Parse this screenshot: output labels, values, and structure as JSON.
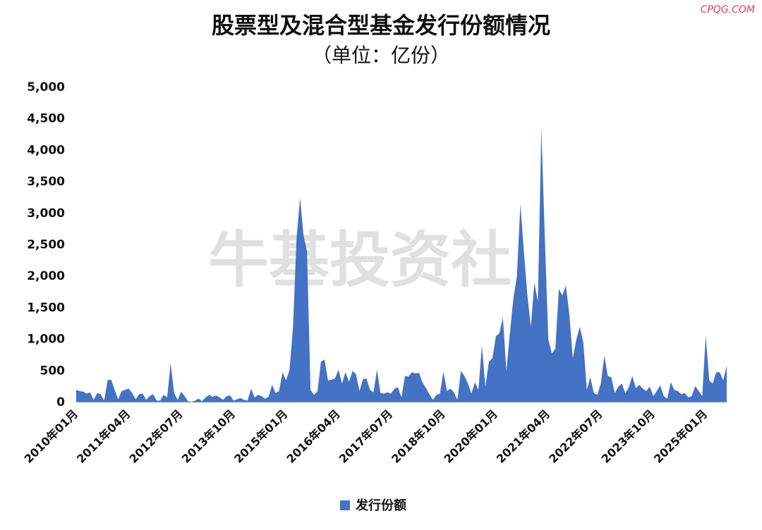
{
  "chart_data": {
    "type": "area",
    "title": "股票型及混合型基金发行份额情况",
    "subtitle": "（单位：亿份）",
    "watermark": "牛基投资社",
    "source": "CPQG.COM",
    "categories": [
      "2010年01月",
      null,
      null,
      null,
      null,
      null,
      null,
      null,
      null,
      null,
      null,
      null,
      null,
      null,
      null,
      "2011年04月",
      null,
      null,
      null,
      null,
      null,
      null,
      null,
      null,
      null,
      null,
      null,
      null,
      null,
      null,
      "2012年07月",
      null,
      null,
      null,
      null,
      null,
      null,
      null,
      null,
      null,
      null,
      null,
      null,
      null,
      null,
      "2013年10月",
      null,
      null,
      null,
      null,
      null,
      null,
      null,
      null,
      null,
      null,
      null,
      null,
      null,
      null,
      "2015年01月",
      null,
      null,
      null,
      null,
      null,
      null,
      null,
      null,
      null,
      null,
      null,
      null,
      null,
      null,
      "2016年04月",
      null,
      null,
      null,
      null,
      null,
      null,
      null,
      null,
      null,
      null,
      null,
      null,
      null,
      null,
      "2017年07月",
      null,
      null,
      null,
      null,
      null,
      null,
      null,
      null,
      null,
      null,
      null,
      null,
      null,
      null,
      "2018年10月",
      null,
      null,
      null,
      null,
      null,
      null,
      null,
      null,
      null,
      null,
      null,
      null,
      null,
      null,
      "2020年01月",
      null,
      null,
      null,
      null,
      null,
      null,
      null,
      null,
      null,
      null,
      null,
      null,
      null,
      null,
      "2021年04月",
      null,
      null,
      null,
      null,
      null,
      null,
      null,
      null,
      null,
      null,
      null,
      null,
      null,
      null,
      "2022年07月",
      null,
      null,
      null,
      null,
      null,
      null,
      null,
      null,
      null,
      null,
      null,
      null,
      null,
      null,
      "2023年10月",
      null,
      null,
      null,
      null,
      null,
      null,
      null,
      null,
      null,
      null,
      null,
      null,
      null,
      null,
      "2025年01月",
      null,
      null,
      null,
      null,
      null,
      null
    ],
    "series": [
      {
        "name": "发行份额",
        "color": "#4472c4",
        "values": [
          200,
          180,
          170,
          140,
          160,
          40,
          150,
          130,
          30,
          360,
          360,
          200,
          50,
          180,
          200,
          220,
          150,
          50,
          130,
          140,
          40,
          100,
          130,
          30,
          30,
          120,
          80,
          620,
          150,
          40,
          170,
          100,
          20,
          10,
          30,
          60,
          20,
          80,
          120,
          90,
          110,
          80,
          40,
          100,
          110,
          30,
          50,
          70,
          40,
          30,
          220,
          80,
          120,
          100,
          60,
          90,
          280,
          150,
          180,
          480,
          350,
          520,
          1200,
          2600,
          3250,
          2650,
          2400,
          200,
          120,
          180,
          650,
          680,
          350,
          360,
          380,
          520,
          300,
          480,
          330,
          500,
          450,
          180,
          370,
          380,
          200,
          160,
          520,
          150,
          140,
          160,
          140,
          220,
          240,
          80,
          420,
          410,
          480,
          460,
          470,
          320,
          230,
          130,
          40,
          120,
          140,
          490,
          180,
          220,
          160,
          40,
          500,
          420,
          300,
          140,
          320,
          200,
          900,
          250,
          650,
          700,
          1050,
          1100,
          1350,
          500,
          1100,
          1650,
          2000,
          3150,
          2400,
          1700,
          1200,
          1900,
          1600,
          4350,
          2600,
          1000,
          780,
          850,
          1800,
          1700,
          1850,
          1400,
          700,
          1000,
          1200,
          950,
          200,
          400,
          150,
          120,
          300,
          740,
          420,
          400,
          150,
          250,
          300,
          150,
          240,
          420,
          230,
          280,
          220,
          180,
          250,
          100,
          180,
          270,
          100,
          60,
          320,
          200,
          180,
          130,
          150,
          80,
          100,
          260,
          180,
          100,
          1060,
          350,
          300,
          480,
          480,
          350,
          580
        ]
      }
    ],
    "ylim": [
      0,
      5000
    ],
    "yticks": [
      0,
      500,
      {
        "value": 1000,
        "label": "1,000"
      },
      {
        "value": 1500,
        "label": "1,500"
      },
      {
        "value": 2000,
        "label": "2,000"
      },
      {
        "value": 2500,
        "label": "2,500"
      },
      {
        "value": 3000,
        "label": "3,000"
      },
      {
        "value": 3500,
        "label": "3,500"
      },
      {
        "value": 4000,
        "label": "4,000"
      },
      {
        "value": 4500,
        "label": "4,500"
      },
      {
        "value": 5000,
        "label": "5,000"
      }
    ],
    "grid": false,
    "legend": "bottom"
  }
}
